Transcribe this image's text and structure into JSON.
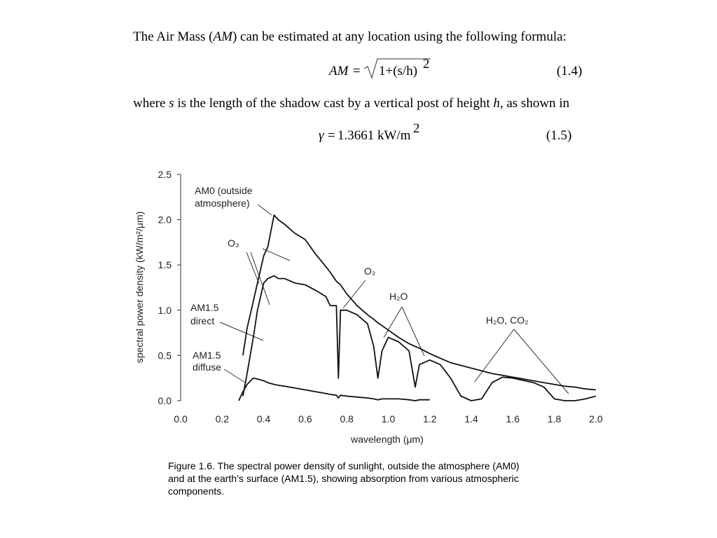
{
  "text_line_1": [
    "The Air Mass (",
    "AM",
    ") can be estimated at any location using the following formula:"
  ],
  "equation_1_4": {
    "lhs": "AM",
    "equals": "=",
    "radicand": "1+(s/h)",
    "exponent": "2",
    "number": "(1.4)"
  },
  "text_line_2": [
    "where ",
    "s",
    " is the length of the shadow cast by a vertical post of height ",
    "h",
    ", as shown in"
  ],
  "equation_1_5": {
    "lhs": "γ",
    "equals": "=",
    "value": "1.3661 kW/m",
    "exponent": "2",
    "number": "(1.5)"
  },
  "chart_data": {
    "type": "line",
    "xlabel": "wavelength (μm)",
    "ylabel": "spectral power density (kW/m²/μm)",
    "x": [
      0.28,
      0.3,
      0.32,
      0.35,
      0.37,
      0.4,
      0.42,
      0.45,
      0.47,
      0.5,
      0.55,
      0.6,
      0.65,
      0.7,
      0.72,
      0.75,
      0.76,
      0.77,
      0.8,
      0.85,
      0.9,
      0.93,
      0.95,
      0.97,
      1.0,
      1.05,
      1.1,
      1.13,
      1.15,
      1.2,
      1.25,
      1.3,
      1.35,
      1.4,
      1.45,
      1.5,
      1.55,
      1.6,
      1.7,
      1.75,
      1.8,
      1.85,
      1.9,
      1.95,
      2.0
    ],
    "series": [
      {
        "name": "AM0",
        "color": "#111111",
        "values": [
          null,
          0.5,
          0.8,
          1.1,
          1.3,
          1.6,
          1.7,
          2.05,
          2.0,
          1.95,
          1.85,
          1.78,
          1.62,
          1.48,
          1.42,
          1.32,
          1.3,
          1.28,
          1.18,
          1.05,
          0.95,
          0.9,
          0.86,
          0.83,
          0.78,
          0.7,
          0.63,
          0.6,
          0.58,
          0.52,
          0.47,
          0.42,
          0.39,
          0.36,
          0.33,
          0.3,
          0.28,
          0.26,
          0.22,
          0.2,
          0.18,
          0.16,
          0.15,
          0.13,
          0.12
        ]
      },
      {
        "name": "AM1.5 direct",
        "color": "#111111",
        "values": [
          null,
          0.05,
          0.3,
          0.7,
          1.0,
          1.3,
          1.35,
          1.38,
          1.35,
          1.35,
          1.3,
          1.28,
          1.22,
          1.15,
          1.05,
          1.05,
          0.25,
          1.0,
          1.0,
          0.95,
          0.85,
          0.6,
          0.25,
          0.55,
          0.7,
          0.65,
          0.55,
          0.15,
          0.4,
          0.45,
          0.4,
          0.25,
          0.05,
          0.0,
          0.02,
          0.2,
          0.26,
          0.25,
          0.2,
          0.15,
          0.02,
          0.0,
          0.0,
          0.02,
          0.05
        ]
      },
      {
        "name": "AM1.5 diffuse",
        "color": "#111111",
        "values": [
          0.0,
          0.1,
          0.18,
          0.25,
          0.24,
          0.22,
          0.2,
          0.18,
          0.17,
          0.16,
          0.14,
          0.12,
          0.1,
          0.08,
          0.07,
          0.06,
          0.03,
          0.06,
          0.05,
          0.04,
          0.03,
          0.02,
          0.01,
          0.02,
          0.02,
          0.02,
          0.01,
          0.0,
          0.01,
          0.01,
          null,
          null,
          null,
          null,
          null,
          null,
          null,
          null,
          null,
          null,
          null,
          null,
          null,
          null,
          null
        ]
      }
    ],
    "xlim": [
      0,
      2.0
    ],
    "ylim": [
      0,
      2.5
    ],
    "xticks": [
      {
        "value": 0,
        "label": "0.0"
      },
      0.2,
      0.4,
      0.6,
      0.8,
      {
        "value": 1,
        "label": "1.0"
      },
      1.2,
      1.4,
      1.6,
      1.8,
      {
        "value": 2,
        "label": "2.0"
      }
    ],
    "yticks": [
      {
        "value": 0,
        "label": "0.0"
      },
      0.5,
      {
        "value": 1,
        "label": "1.0"
      },
      1.5,
      {
        "value": 2,
        "label": "2.0"
      },
      2.5
    ],
    "grid": false,
    "annotations": {
      "am0": [
        "AM0 (outside",
        "atmosphere)"
      ],
      "o3": "O₃",
      "o2": "O₂",
      "h2o": "H₂O",
      "h2o_co2": "H₂O, CO₂",
      "am15_direct": [
        "AM1.5",
        "direct"
      ],
      "am15_diffuse": [
        "AM1.5",
        "diffuse"
      ]
    }
  },
  "caption": [
    "Figure 1.6. The spectral power density of sunlight, outside the atmosphere (AM0)",
    "and at the earth’s surface (AM1.5), showing absorption from various atmospheric",
    "components."
  ]
}
